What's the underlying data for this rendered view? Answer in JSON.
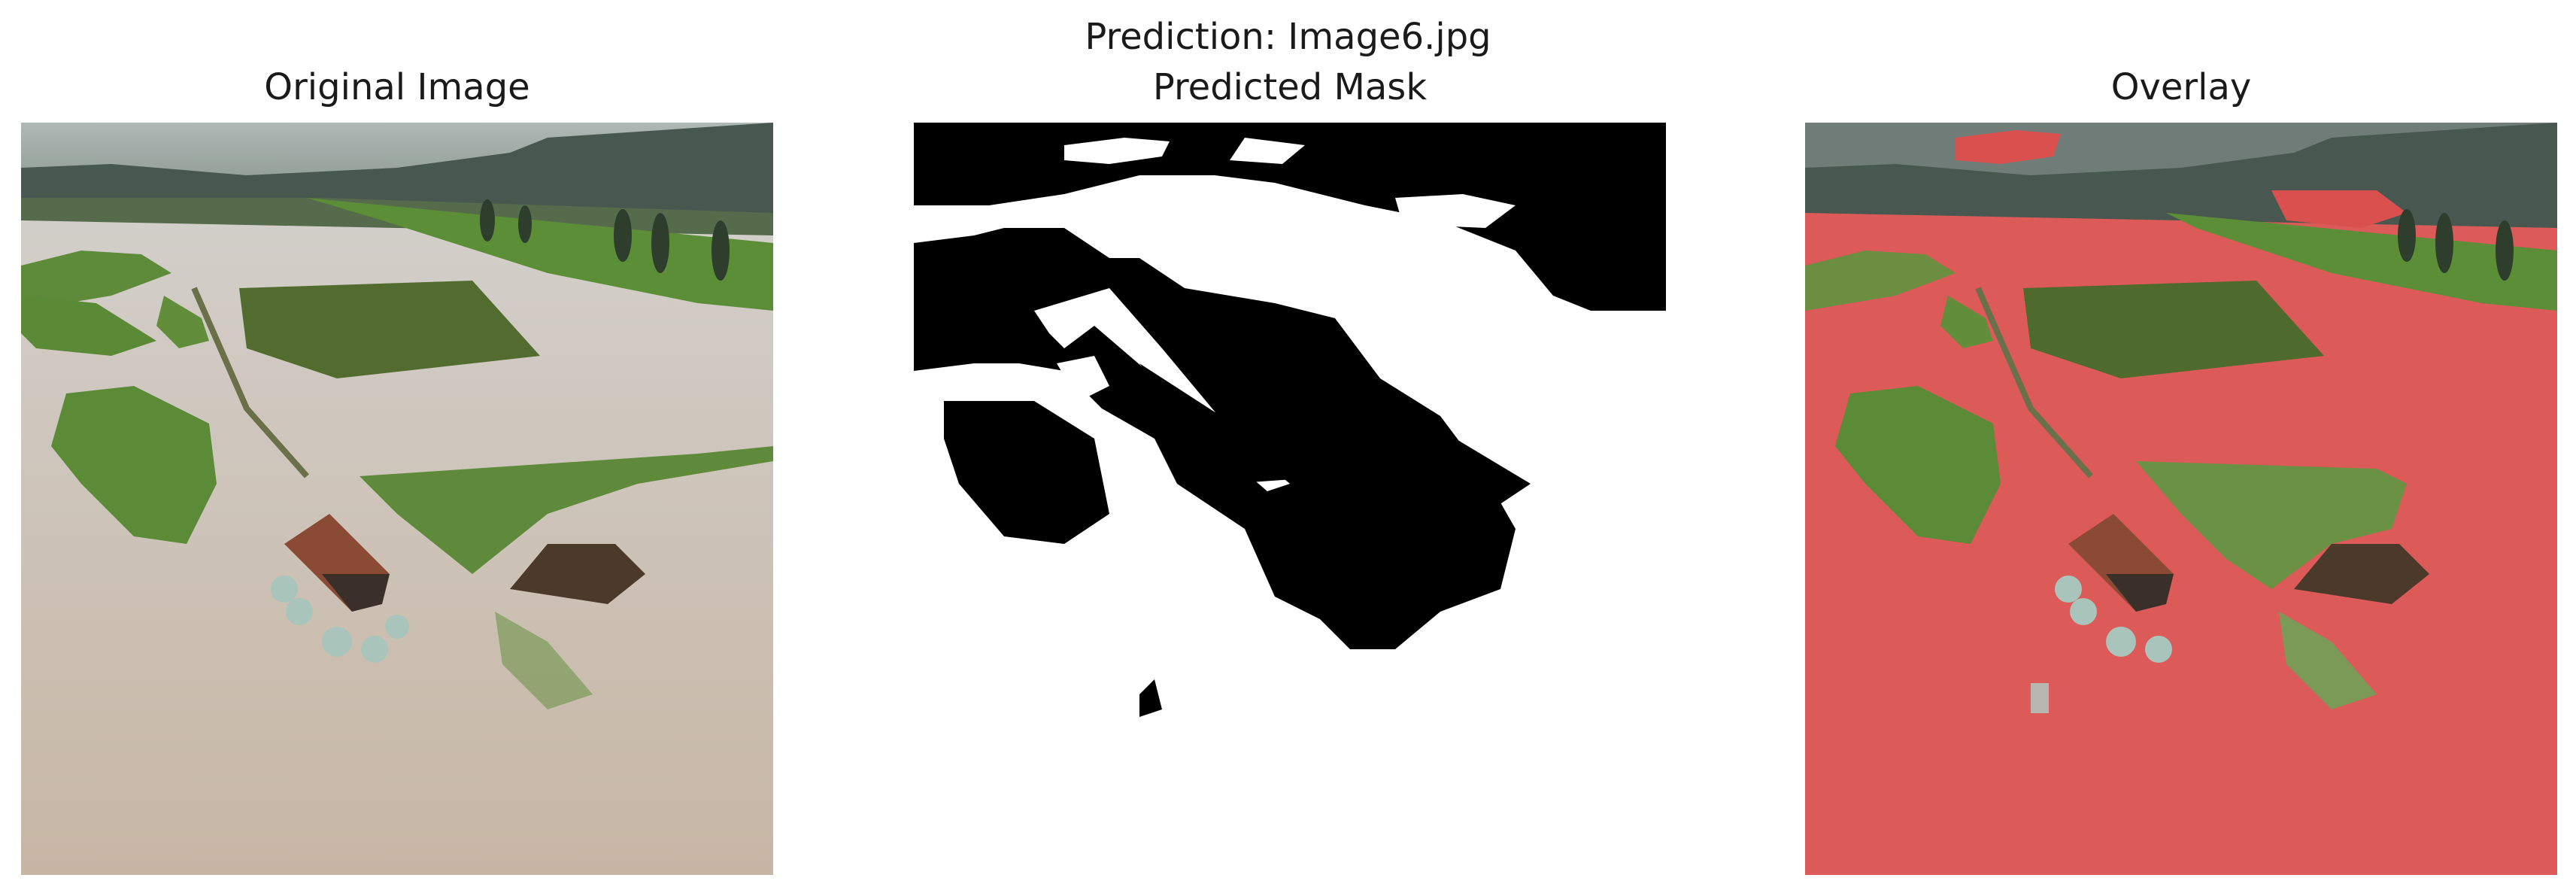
{
  "figure": {
    "suptitle": "Prediction: Image6.jpg"
  },
  "panels": [
    {
      "title": "Original Image",
      "kind": "photo"
    },
    {
      "title": "Predicted Mask",
      "kind": "binary-mask"
    },
    {
      "title": "Overlay",
      "kind": "photo-with-mask-overlay"
    }
  ],
  "colors": {
    "water": "#c9bfb3",
    "grass": "#5d8a3a",
    "mask_foreground": "#ffffff",
    "mask_background": "#000000",
    "overlay_red": "#e05555"
  }
}
